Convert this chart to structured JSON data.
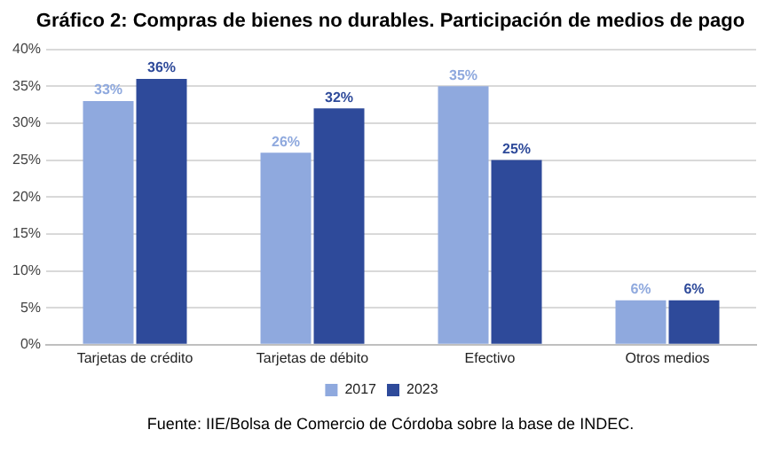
{
  "chart_data": {
    "type": "bar",
    "title": "Gráfico 2: Compras de bienes no durables. Participación de medios de pago",
    "categories": [
      "Tarjetas de crédito",
      "Tarjetas de débito",
      "Efectivo",
      "Otros medios"
    ],
    "series": [
      {
        "name": "2017",
        "color": "#8fa9de",
        "values": [
          33,
          26,
          35,
          6
        ],
        "value_labels": [
          "33%",
          "26%",
          "35%",
          "6%"
        ]
      },
      {
        "name": "2023",
        "color": "#2e4a9a",
        "values": [
          36,
          32,
          25,
          6
        ],
        "value_labels": [
          "36%",
          "32%",
          "25%",
          "6%"
        ]
      }
    ],
    "ylim": [
      0,
      40
    ],
    "yticks": [
      {
        "value": 0,
        "label": "0%"
      },
      {
        "value": 5,
        "label": "5%"
      },
      {
        "value": 10,
        "label": "10%"
      },
      {
        "value": 15,
        "label": "15%"
      },
      {
        "value": 20,
        "label": "20%"
      },
      {
        "value": 25,
        "label": "25%"
      },
      {
        "value": 30,
        "label": "30%"
      },
      {
        "value": 35,
        "label": "35%"
      },
      {
        "value": 40,
        "label": "40%"
      }
    ],
    "grid": "y",
    "legend": "bottom",
    "annotations": [
      "Fuente: IIE/Bolsa de Comercio de Córdoba sobre la base de INDEC."
    ]
  }
}
